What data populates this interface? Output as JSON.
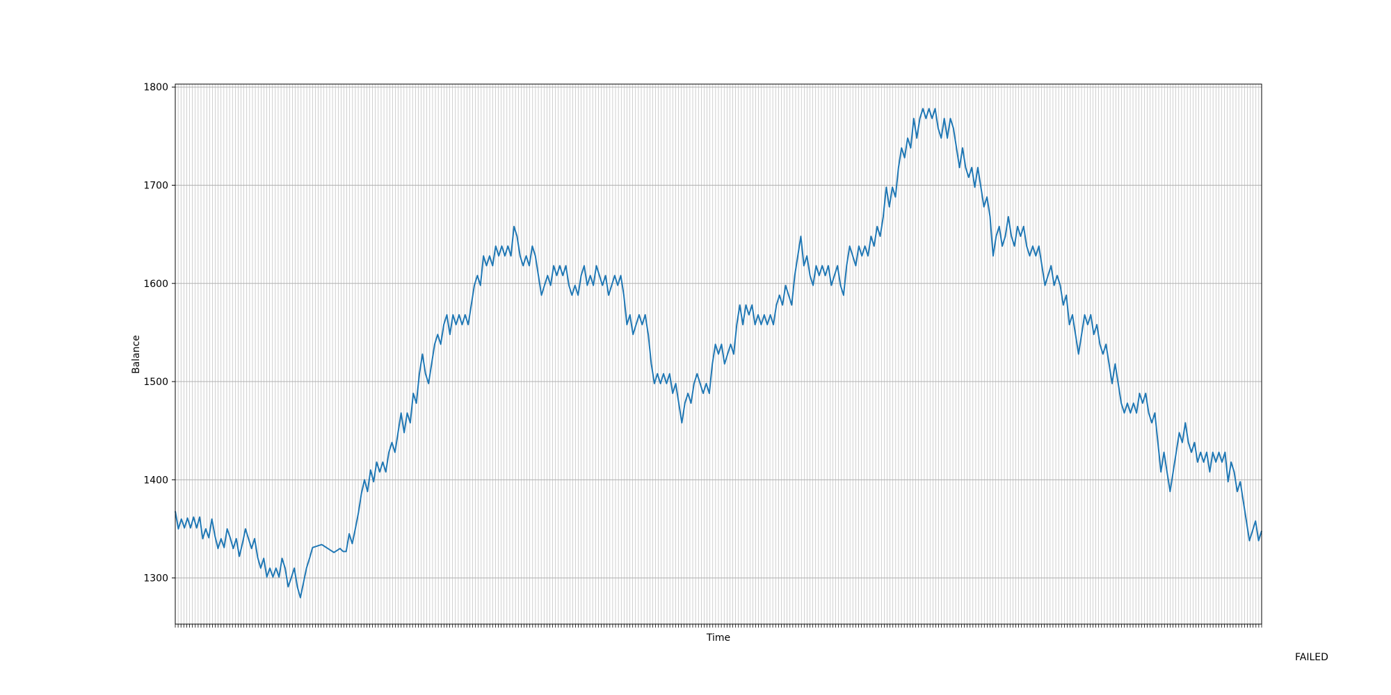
{
  "status": "FAILED",
  "chart_data": {
    "type": "line",
    "title": "",
    "xlabel": "Time",
    "ylabel": "Balance",
    "ylim": [
      1253,
      1803
    ],
    "yticks": [
      1300,
      1400,
      1500,
      1600,
      1700,
      1800
    ],
    "xticks": "dense vertical grid, no tick labels",
    "grid": true,
    "series_color": "#1f77b4",
    "grid_color": "#b0b0b0",
    "y": [
      1368,
      1350,
      1360,
      1351,
      1361,
      1351,
      1362,
      1351,
      1362,
      1340,
      1350,
      1341,
      1360,
      1343,
      1330,
      1340,
      1331,
      1350,
      1341,
      1330,
      1340,
      1322,
      1335,
      1350,
      1340,
      1330,
      1340,
      1321,
      1310,
      1320,
      1301,
      1310,
      1301,
      1310,
      1301,
      1320,
      1310,
      1291,
      1300,
      1310,
      1291,
      1280,
      1295,
      1310,
      1320,
      1331,
      1332,
      1333,
      1334,
      1332,
      1330,
      1328,
      1326,
      1328,
      1330,
      1327,
      1327,
      1345,
      1335,
      1350,
      1366,
      1386,
      1400,
      1388,
      1410,
      1398,
      1418,
      1408,
      1418,
      1408,
      1428,
      1438,
      1428,
      1448,
      1468,
      1448,
      1468,
      1458,
      1488,
      1478,
      1508,
      1528,
      1508,
      1498,
      1518,
      1538,
      1548,
      1538,
      1558,
      1568,
      1548,
      1568,
      1558,
      1568,
      1558,
      1568,
      1558,
      1578,
      1598,
      1608,
      1598,
      1628,
      1618,
      1628,
      1618,
      1638,
      1628,
      1638,
      1628,
      1638,
      1628,
      1658,
      1648,
      1628,
      1618,
      1628,
      1618,
      1638,
      1628,
      1608,
      1588,
      1598,
      1608,
      1598,
      1618,
      1608,
      1618,
      1608,
      1618,
      1598,
      1588,
      1598,
      1588,
      1608,
      1618,
      1598,
      1608,
      1598,
      1618,
      1608,
      1598,
      1608,
      1588,
      1598,
      1608,
      1598,
      1608,
      1588,
      1558,
      1568,
      1548,
      1558,
      1568,
      1558,
      1568,
      1548,
      1518,
      1498,
      1508,
      1498,
      1508,
      1498,
      1508,
      1488,
      1498,
      1478,
      1458,
      1478,
      1488,
      1478,
      1498,
      1508,
      1498,
      1488,
      1498,
      1488,
      1518,
      1538,
      1528,
      1538,
      1518,
      1528,
      1538,
      1528,
      1558,
      1578,
      1558,
      1578,
      1568,
      1578,
      1558,
      1568,
      1558,
      1568,
      1558,
      1568,
      1558,
      1578,
      1588,
      1578,
      1598,
      1588,
      1578,
      1608,
      1628,
      1648,
      1618,
      1628,
      1608,
      1598,
      1618,
      1608,
      1618,
      1608,
      1618,
      1598,
      1608,
      1618,
      1598,
      1588,
      1618,
      1638,
      1628,
      1618,
      1638,
      1628,
      1638,
      1628,
      1648,
      1638,
      1658,
      1648,
      1668,
      1698,
      1678,
      1698,
      1688,
      1718,
      1738,
      1728,
      1748,
      1738,
      1768,
      1748,
      1768,
      1778,
      1768,
      1778,
      1768,
      1778,
      1758,
      1748,
      1768,
      1748,
      1768,
      1758,
      1738,
      1718,
      1738,
      1718,
      1708,
      1718,
      1698,
      1718,
      1698,
      1678,
      1688,
      1668,
      1628,
      1648,
      1658,
      1638,
      1648,
      1668,
      1648,
      1638,
      1658,
      1648,
      1658,
      1638,
      1628,
      1638,
      1628,
      1638,
      1618,
      1598,
      1608,
      1618,
      1598,
      1608,
      1598,
      1578,
      1588,
      1558,
      1568,
      1548,
      1528,
      1548,
      1568,
      1558,
      1568,
      1548,
      1558,
      1538,
      1528,
      1538,
      1518,
      1498,
      1518,
      1498,
      1478,
      1468,
      1478,
      1468,
      1478,
      1468,
      1488,
      1478,
      1488,
      1468,
      1458,
      1468,
      1438,
      1408,
      1428,
      1408,
      1388,
      1408,
      1428,
      1448,
      1438,
      1458,
      1438,
      1428,
      1438,
      1418,
      1428,
      1418,
      1428,
      1408,
      1428,
      1418,
      1428,
      1418,
      1428,
      1398,
      1418,
      1408,
      1388,
      1398,
      1378,
      1358,
      1338,
      1348,
      1358,
      1338,
      1348
    ]
  }
}
